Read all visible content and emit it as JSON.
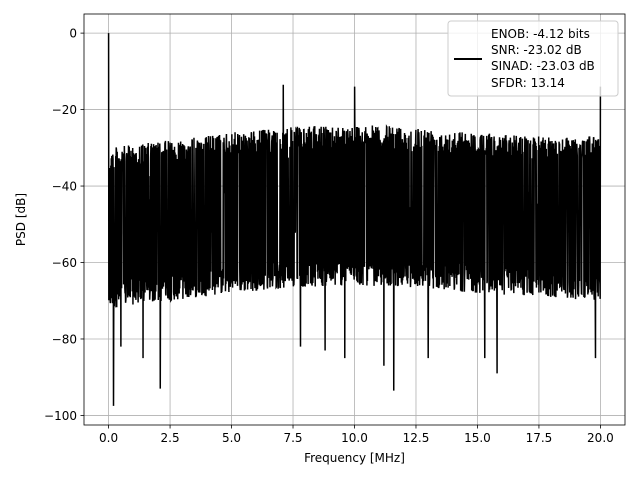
{
  "chart_data": {
    "type": "line",
    "title": "",
    "xlabel": "Frequency [MHz]",
    "ylabel": "PSD [dB]",
    "xlim": [
      -1.0,
      21.0
    ],
    "ylim": [
      -102.5,
      5.0
    ],
    "xticks": [
      0.0,
      2.5,
      5.0,
      7.5,
      10.0,
      12.5,
      15.0,
      17.5,
      20.0
    ],
    "xtick_labels": [
      "0.0",
      "2.5",
      "5.0",
      "7.5",
      "10.0",
      "12.5",
      "15.0",
      "17.5",
      "20.0"
    ],
    "yticks": [
      0,
      -20,
      -40,
      -60,
      -80,
      -100
    ],
    "ytick_labels": [
      "0",
      "−20",
      "−40",
      "−60",
      "−80",
      "−100"
    ],
    "grid": true,
    "legend": {
      "placement": "top-right",
      "entries": [
        "ENOB: -4.12 bits",
        "SNR: -23.02 dB",
        "SINAD: -23.03 dB",
        "SFDR: 13.14"
      ]
    },
    "series": [
      {
        "color": "#000000",
        "x_range": [
          0.0,
          20.0
        ],
        "points": 2000,
        "noise_floor_upper_db": [
          [
            0.0,
            -30
          ],
          [
            2.5,
            -28
          ],
          [
            5.0,
            -26
          ],
          [
            7.5,
            -24.5
          ],
          [
            10.0,
            -24
          ],
          [
            12.5,
            -24.5
          ],
          [
            15.0,
            -26
          ],
          [
            17.5,
            -27
          ],
          [
            20.0,
            -27
          ]
        ],
        "noise_floor_lower_db": [
          [
            0.0,
            -72
          ],
          [
            2.5,
            -70
          ],
          [
            5.0,
            -68
          ],
          [
            7.5,
            -66.5
          ],
          [
            10.0,
            -66
          ],
          [
            12.5,
            -66.5
          ],
          [
            15.0,
            -68
          ],
          [
            17.5,
            -69
          ],
          [
            20.0,
            -70
          ]
        ],
        "spurs": [
          {
            "x": 0.0,
            "y": 0.0
          },
          {
            "x": 7.1,
            "y": -13.5
          },
          {
            "x": 10.0,
            "y": -14.0
          },
          {
            "x": 20.0,
            "y": -14.0
          }
        ],
        "dips": [
          {
            "x": 0.2,
            "y": -97.5
          },
          {
            "x": 0.5,
            "y": -82.0
          },
          {
            "x": 1.4,
            "y": -85.0
          },
          {
            "x": 2.1,
            "y": -93.0
          },
          {
            "x": 7.8,
            "y": -82.0
          },
          {
            "x": 8.8,
            "y": -83.0
          },
          {
            "x": 9.6,
            "y": -85.0
          },
          {
            "x": 11.2,
            "y": -87.0
          },
          {
            "x": 11.6,
            "y": -93.5
          },
          {
            "x": 13.0,
            "y": -85.0
          },
          {
            "x": 15.3,
            "y": -85.0
          },
          {
            "x": 15.8,
            "y": -89.0
          },
          {
            "x": 19.8,
            "y": -85.0
          }
        ]
      }
    ]
  }
}
